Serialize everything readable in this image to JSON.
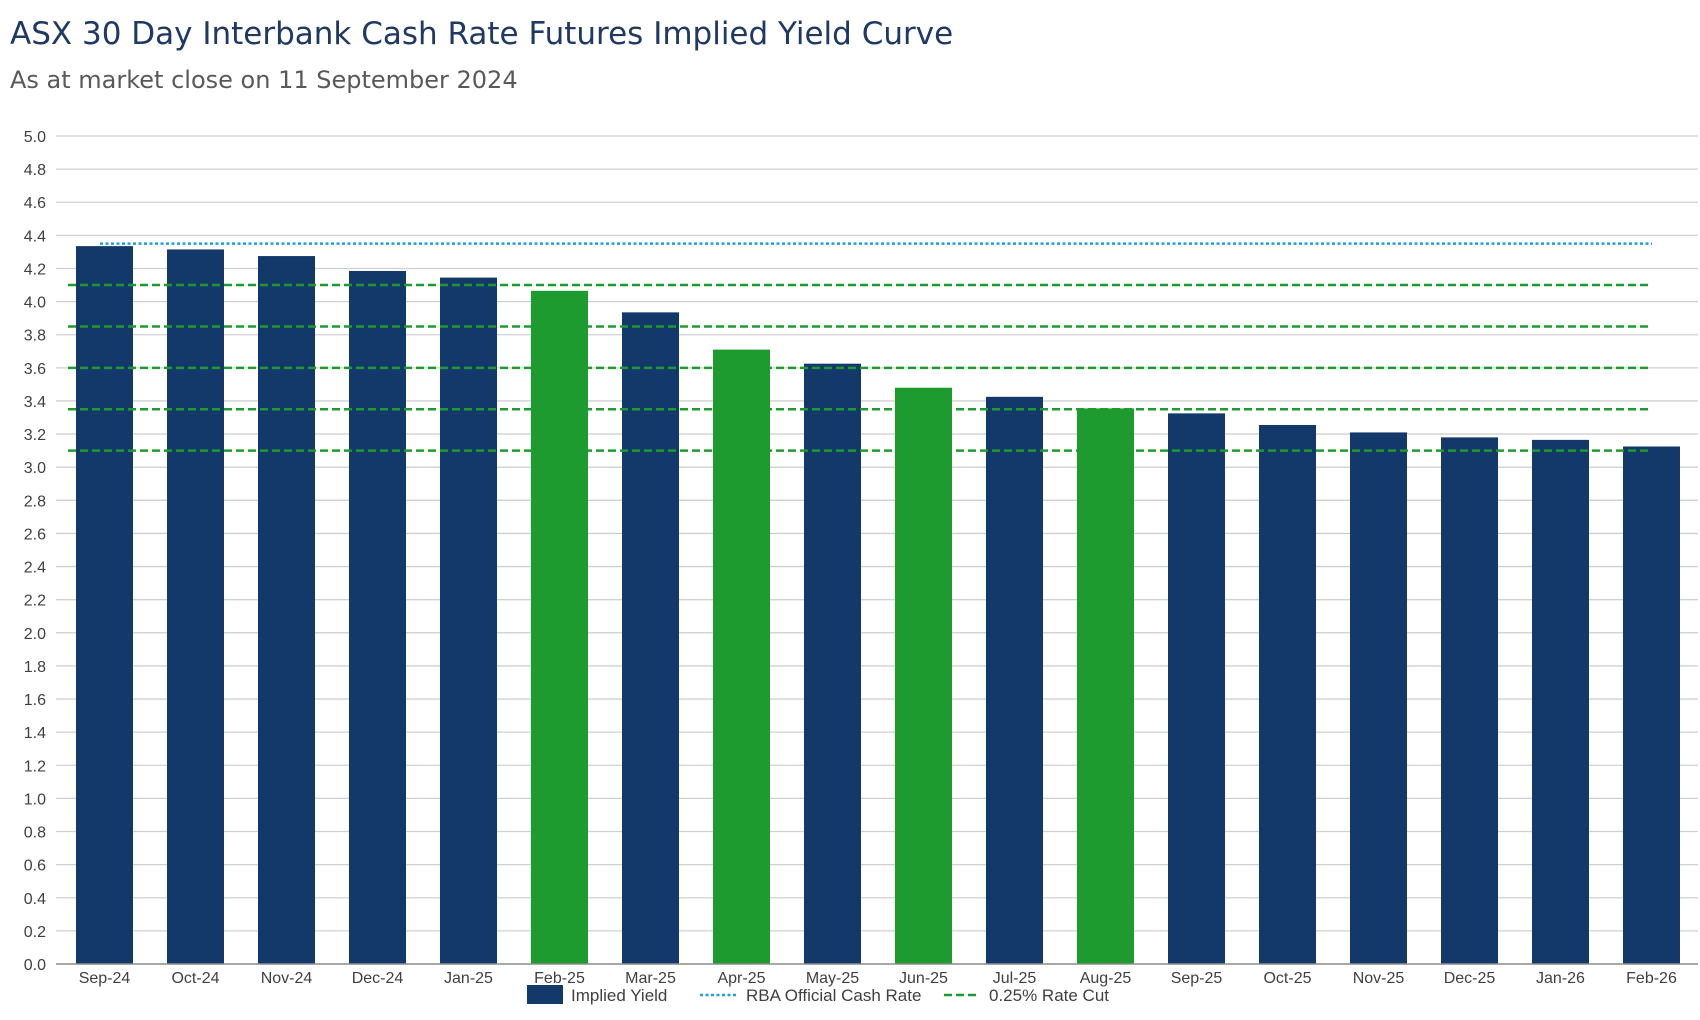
{
  "chart_data": {
    "type": "bar",
    "title": "ASX 30 Day Interbank Cash Rate Futures Implied Yield Curve",
    "subtitle": "As at market close on 11 September 2024",
    "xlabel": "",
    "ylabel": "",
    "ylim": [
      0,
      5.0
    ],
    "ytick_step": 0.2,
    "yticks": [
      "0.0",
      "0.2",
      "0.4",
      "0.6",
      "0.8",
      "1.0",
      "1.2",
      "1.4",
      "1.6",
      "1.8",
      "2.0",
      "2.2",
      "2.4",
      "2.6",
      "2.8",
      "3.0",
      "3.2",
      "3.4",
      "3.6",
      "3.8",
      "4.0",
      "4.2",
      "4.4",
      "4.6",
      "4.8",
      "5.0"
    ],
    "grid": true,
    "categories": [
      "Sep-24",
      "Oct-24",
      "Nov-24",
      "Dec-24",
      "Jan-25",
      "Feb-25",
      "Mar-25",
      "Apr-25",
      "May-25",
      "Jun-25",
      "Jul-25",
      "Aug-25",
      "Sep-25",
      "Oct-25",
      "Nov-25",
      "Dec-25",
      "Jan-26",
      "Feb-26"
    ],
    "series": [
      {
        "name": "Implied Yield",
        "values": [
          4.335,
          4.315,
          4.275,
          4.185,
          4.145,
          4.065,
          3.935,
          3.71,
          3.625,
          3.48,
          3.425,
          3.355,
          3.325,
          3.255,
          3.21,
          3.18,
          3.165,
          3.125
        ],
        "highlighted": [
          false,
          false,
          false,
          false,
          false,
          true,
          false,
          true,
          false,
          true,
          false,
          true,
          false,
          false,
          false,
          false,
          false,
          false
        ]
      }
    ],
    "reference_lines": [
      {
        "name": "RBA Official Cash Rate",
        "value": 4.35,
        "style": "dotted"
      },
      {
        "name": "0.25% Rate Cut",
        "values": [
          4.1,
          3.85,
          3.6,
          3.35,
          3.1
        ],
        "style": "dashed"
      }
    ],
    "legend": {
      "position": "bottom-center",
      "items": [
        "Implied Yield",
        "RBA Official Cash Rate",
        "0.25% Rate Cut"
      ]
    },
    "colors": {
      "bar": "#13386a",
      "bar_highlight": "#1e9b2e",
      "rba_line": "#1ea0e0",
      "cut_line": "#1e9b2e",
      "grid": "#d0d0d0",
      "axis": "#8c8c8c"
    }
  }
}
